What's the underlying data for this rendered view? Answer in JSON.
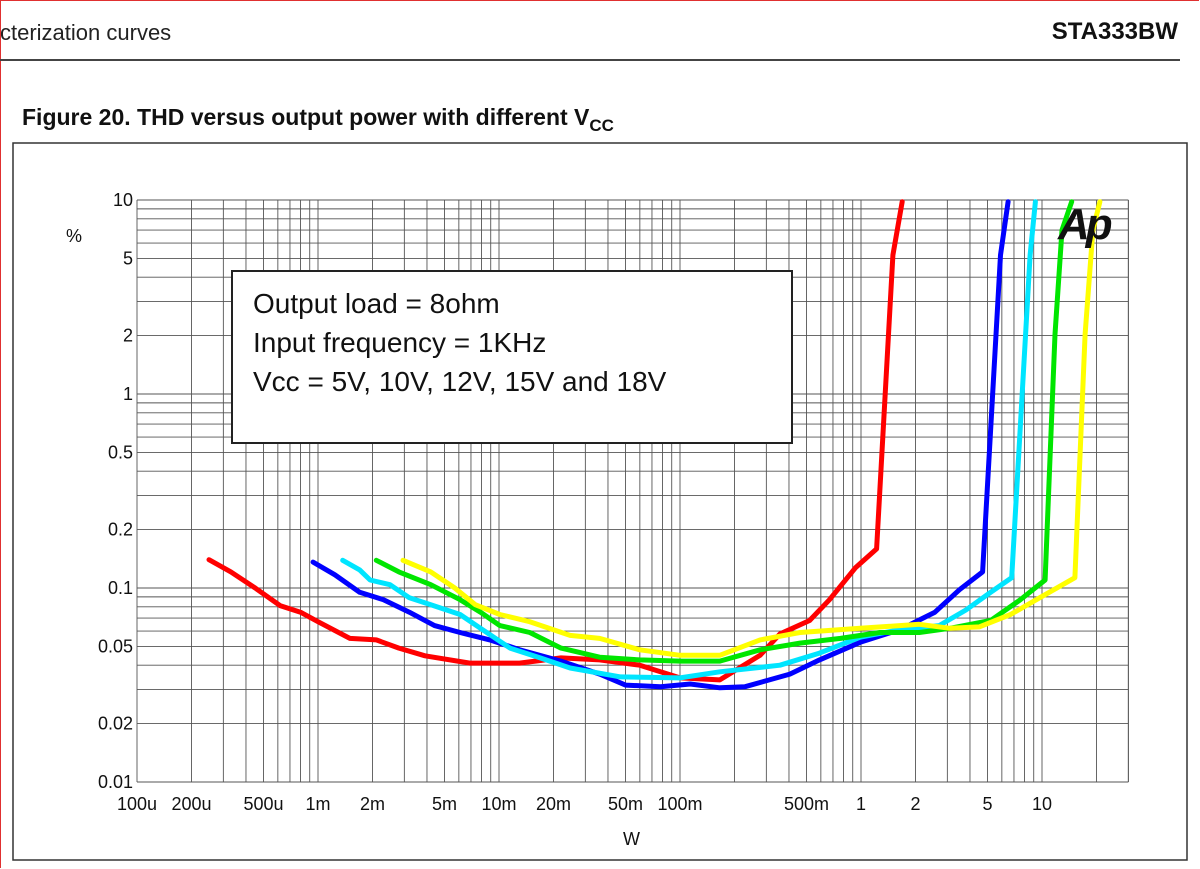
{
  "header": {
    "section": "cterization curves",
    "doc_id": "STA333BW"
  },
  "figure": {
    "title": "Figure 20.  THD versus output power with different V",
    "title_sub": "CC"
  },
  "chart_data": {
    "type": "line",
    "title": "",
    "xlabel": "W",
    "ylabel": "%",
    "x_scale": "log",
    "y_scale": "log",
    "xlim": [
      0.0001,
      30
    ],
    "ylim": [
      0.01,
      10
    ],
    "grid": true,
    "x_ticks": [
      {
        "v": 0.0001,
        "l": "100u"
      },
      {
        "v": 0.0002,
        "l": "200u"
      },
      {
        "v": 0.0005,
        "l": "500u"
      },
      {
        "v": 0.001,
        "l": "1m"
      },
      {
        "v": 0.002,
        "l": "2m"
      },
      {
        "v": 0.005,
        "l": "5m"
      },
      {
        "v": 0.01,
        "l": "10m"
      },
      {
        "v": 0.02,
        "l": "20m"
      },
      {
        "v": 0.05,
        "l": "50m"
      },
      {
        "v": 0.1,
        "l": "100m"
      },
      {
        "v": 0.5,
        "l": "500m"
      },
      {
        "v": 1,
        "l": "1"
      },
      {
        "v": 2,
        "l": "2"
      },
      {
        "v": 5,
        "l": "5"
      },
      {
        "v": 10,
        "l": "10"
      }
    ],
    "y_ticks": [
      {
        "v": 10,
        "l": "10"
      },
      {
        "v": 5,
        "l": "5"
      },
      {
        "v": 2,
        "l": "2"
      },
      {
        "v": 1,
        "l": "1"
      },
      {
        "v": 0.5,
        "l": "0.5"
      },
      {
        "v": 0.2,
        "l": "0.2"
      },
      {
        "v": 0.1,
        "l": "0.1"
      },
      {
        "v": 0.05,
        "l": "0.05"
      },
      {
        "v": 0.02,
        "l": "0.02"
      },
      {
        "v": 0.01,
        "l": "0.01"
      }
    ],
    "annotation": [
      "Output load = 8ohm",
      "Input frequency = 1KHz",
      "Vcc = 5V, 10V, 12V, 15V and 18V"
    ],
    "logo": "Ap",
    "series": [
      {
        "color": "#ff0000",
        "points": [
          [
            0.00025,
            0.14
          ],
          [
            0.00033,
            0.121
          ],
          [
            0.00045,
            0.1
          ],
          [
            0.00062,
            0.081
          ],
          [
            0.0008,
            0.075
          ],
          [
            0.001,
            0.067
          ],
          [
            0.0015,
            0.055
          ],
          [
            0.0021,
            0.054
          ],
          [
            0.0028,
            0.049
          ],
          [
            0.0039,
            0.0447
          ],
          [
            0.0069,
            0.041
          ],
          [
            0.013,
            0.041
          ],
          [
            0.022,
            0.0436
          ],
          [
            0.036,
            0.0426
          ],
          [
            0.06,
            0.04
          ],
          [
            0.1,
            0.0344
          ],
          [
            0.166,
            0.0336
          ],
          [
            0.277,
            0.045
          ],
          [
            0.357,
            0.058
          ],
          [
            0.52,
            0.068
          ],
          [
            0.67,
            0.087
          ],
          [
            0.93,
            0.127
          ],
          [
            1.22,
            0.159
          ],
          [
            1.5,
            5.2
          ],
          [
            1.69,
            9.8
          ]
        ]
      },
      {
        "color": "#0000ff",
        "points": [
          [
            0.00094,
            0.136
          ],
          [
            0.00124,
            0.117
          ],
          [
            0.0017,
            0.095
          ],
          [
            0.0023,
            0.087
          ],
          [
            0.0032,
            0.075
          ],
          [
            0.0044,
            0.064
          ],
          [
            0.0061,
            0.059
          ],
          [
            0.0089,
            0.054
          ],
          [
            0.013,
            0.048
          ],
          [
            0.022,
            0.042
          ],
          [
            0.036,
            0.036
          ],
          [
            0.05,
            0.0316
          ],
          [
            0.078,
            0.031
          ],
          [
            0.114,
            0.032
          ],
          [
            0.166,
            0.0306
          ],
          [
            0.229,
            0.031
          ],
          [
            0.405,
            0.036
          ],
          [
            0.59,
            0.0426
          ],
          [
            0.99,
            0.0525
          ],
          [
            1.64,
            0.061
          ],
          [
            2.56,
            0.075
          ],
          [
            3.5,
            0.098
          ],
          [
            4.7,
            0.121
          ],
          [
            5.9,
            5.2
          ],
          [
            6.5,
            9.8
          ]
        ]
      },
      {
        "color": "#00e5ff",
        "points": [
          [
            0.00137,
            0.139
          ],
          [
            0.0017,
            0.124
          ],
          [
            0.00194,
            0.11
          ],
          [
            0.0025,
            0.104
          ],
          [
            0.0032,
            0.089
          ],
          [
            0.0042,
            0.082
          ],
          [
            0.0061,
            0.073
          ],
          [
            0.0079,
            0.062
          ],
          [
            0.0115,
            0.049
          ],
          [
            0.0169,
            0.0436
          ],
          [
            0.0247,
            0.0387
          ],
          [
            0.047,
            0.0348
          ],
          [
            0.1,
            0.0344
          ],
          [
            0.166,
            0.037
          ],
          [
            0.357,
            0.04
          ],
          [
            0.59,
            0.0462
          ],
          [
            0.99,
            0.0558
          ],
          [
            1.64,
            0.061
          ],
          [
            2.7,
            0.064
          ],
          [
            3.8,
            0.077
          ],
          [
            5.2,
            0.095
          ],
          [
            6.8,
            0.113
          ],
          [
            8.6,
            5.2
          ],
          [
            9.2,
            9.8
          ]
        ]
      },
      {
        "color": "#00e600",
        "points": [
          [
            0.0021,
            0.139
          ],
          [
            0.0028,
            0.121
          ],
          [
            0.0042,
            0.104
          ],
          [
            0.0061,
            0.087
          ],
          [
            0.0079,
            0.075
          ],
          [
            0.0101,
            0.064
          ],
          [
            0.0148,
            0.059
          ],
          [
            0.022,
            0.049
          ],
          [
            0.036,
            0.044
          ],
          [
            0.06,
            0.0426
          ],
          [
            0.1,
            0.042
          ],
          [
            0.166,
            0.042
          ],
          [
            0.277,
            0.048
          ],
          [
            0.46,
            0.052
          ],
          [
            0.77,
            0.055
          ],
          [
            1.27,
            0.059
          ],
          [
            2.1,
            0.059
          ],
          [
            3.1,
            0.062
          ],
          [
            5.2,
            0.068
          ],
          [
            7.6,
            0.087
          ],
          [
            10.4,
            0.11
          ],
          [
            11.8,
            2.03
          ],
          [
            12.9,
            7.0
          ],
          [
            14.6,
            9.8
          ]
        ]
      },
      {
        "color": "#ffff00",
        "points": [
          [
            0.00295,
            0.139
          ],
          [
            0.0042,
            0.121
          ],
          [
            0.0057,
            0.1
          ],
          [
            0.0074,
            0.082
          ],
          [
            0.0101,
            0.073
          ],
          [
            0.0148,
            0.067
          ],
          [
            0.0247,
            0.057
          ],
          [
            0.036,
            0.055
          ],
          [
            0.06,
            0.048
          ],
          [
            0.1,
            0.045
          ],
          [
            0.166,
            0.045
          ],
          [
            0.277,
            0.054
          ],
          [
            0.46,
            0.059
          ],
          [
            0.99,
            0.062
          ],
          [
            2.1,
            0.065
          ],
          [
            3.1,
            0.062
          ],
          [
            4.5,
            0.063
          ],
          [
            6.7,
            0.073
          ],
          [
            9.7,
            0.089
          ],
          [
            15.2,
            0.113
          ],
          [
            17.3,
            2.03
          ],
          [
            19.1,
            7.0
          ],
          [
            20.9,
            9.8
          ]
        ]
      }
    ]
  }
}
